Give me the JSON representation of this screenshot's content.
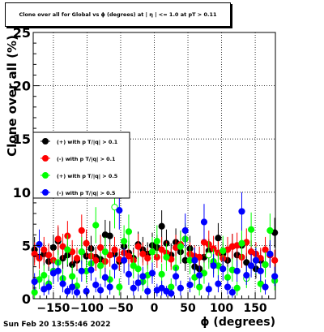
{
  "header": {
    "title": "Clone  over all for Global vs ϕ (degrees) at | η | <= 1.0 at pT > 0.11"
  },
  "timestamp": "Sun Feb 20 13:55:46 2022",
  "chart_data": {
    "type": "scatter",
    "title": "Clone  over all for Global vs ϕ (degrees) at | η | <= 1.0 at pT > 0.11",
    "xlabel": "ϕ (degrees)",
    "ylabel": "Clone  over all (%)",
    "xlim": [
      -180,
      180
    ],
    "ylim": [
      0,
      25
    ],
    "x_ticks": [
      -150,
      -100,
      -50,
      0,
      50,
      100,
      150
    ],
    "x_tick_labels": [
      "−150",
      "−100",
      "−50",
      "0",
      "50",
      "100",
      "150"
    ],
    "y_ticks": [
      0,
      5,
      10,
      15,
      20,
      25
    ],
    "y_tick_labels": [
      "0",
      "5",
      "10",
      "15",
      "20",
      "25"
    ],
    "grid": true,
    "legend_position": "left",
    "x": [
      -178,
      -171,
      -164,
      -157,
      -150,
      -143,
      -136,
      -129,
      -122,
      -115,
      -108,
      -101,
      -94,
      -87,
      -80,
      -73,
      -66,
      -59,
      -52,
      -45,
      -38,
      -31,
      -24,
      -17,
      -10,
      -3,
      4,
      11,
      18,
      25,
      32,
      39,
      46,
      53,
      60,
      67,
      74,
      81,
      88,
      95,
      102,
      109,
      116,
      123,
      130,
      137,
      144,
      151,
      158,
      165,
      172,
      179
    ],
    "series": [
      {
        "name": "(+) with p T/|q| > 0.1",
        "color": "#000000",
        "values": [
          4.6,
          3.9,
          4.2,
          3.5,
          4.8,
          5.4,
          3.8,
          4.1,
          3.2,
          3.6,
          4.4,
          4.0,
          4.7,
          3.9,
          3.7,
          6.0,
          5.9,
          4.2,
          3.5,
          4.9,
          4.3,
          3.8,
          5.1,
          4.6,
          4.2,
          5.0,
          4.8,
          6.8,
          5.2,
          4.1,
          5.3,
          4.4,
          3.6,
          4.7,
          3.0,
          2.8,
          3.9,
          4.5,
          3.3,
          5.7,
          4.2,
          3.6,
          4.9,
          4.1,
          5.0,
          3.4,
          4.4,
          2.8,
          3.6,
          3.2,
          4.1,
          6.2
        ],
        "errors": [
          1.2,
          1.0,
          1.1,
          0.9,
          1.2,
          1.3,
          1.0,
          1.1,
          0.9,
          1.0,
          1.1,
          1.0,
          1.2,
          1.0,
          1.0,
          1.4,
          1.4,
          1.1,
          0.9,
          1.2,
          1.1,
          1.0,
          1.2,
          1.2,
          1.1,
          1.2,
          1.2,
          1.5,
          1.3,
          1.1,
          1.3,
          1.1,
          1.0,
          1.2,
          0.9,
          0.9,
          1.0,
          1.1,
          0.9,
          1.4,
          1.1,
          1.0,
          1.2,
          1.1,
          1.2,
          0.9,
          1.1,
          0.9,
          1.0,
          0.9,
          1.1,
          1.4
        ]
      },
      {
        "name": "(-) with p T/|q| > 0.1",
        "color": "#ff0000",
        "values": [
          4.2,
          3.8,
          4.6,
          4.1,
          3.6,
          5.6,
          4.9,
          5.9,
          4.4,
          3.8,
          6.4,
          5.2,
          4.0,
          3.6,
          4.8,
          3.5,
          4.1,
          4.6,
          3.7,
          4.3,
          4.0,
          3.6,
          4.9,
          4.2,
          3.8,
          4.4,
          3.9,
          4.6,
          4.3,
          3.7,
          4.8,
          5.1,
          5.6,
          4.2,
          4.0,
          3.9,
          5.3,
          5.1,
          4.7,
          4.3,
          3.8,
          4.6,
          4.9,
          5.0,
          3.9,
          5.3,
          4.4,
          4.2,
          3.8,
          4.6,
          4.1,
          3.6
        ],
        "errors": [
          1.1,
          1.0,
          1.2,
          1.1,
          1.0,
          1.3,
          1.2,
          1.4,
          1.1,
          1.0,
          1.5,
          1.3,
          1.0,
          1.0,
          1.2,
          1.0,
          1.1,
          1.2,
          1.0,
          1.1,
          1.0,
          1.0,
          1.2,
          1.1,
          1.0,
          1.1,
          1.0,
          1.2,
          1.1,
          1.0,
          1.2,
          1.3,
          1.3,
          1.1,
          1.0,
          1.0,
          1.3,
          1.3,
          1.2,
          1.1,
          1.0,
          1.2,
          1.2,
          1.2,
          1.0,
          1.3,
          1.1,
          1.1,
          1.0,
          1.2,
          1.1,
          1.0
        ]
      },
      {
        "name": "(+) with p T/|q| > 0.5",
        "color": "#00ff00",
        "values": [
          0.6,
          1.8,
          2.2,
          1.4,
          2.6,
          3.4,
          1.9,
          4.6,
          2.1,
          1.2,
          4.4,
          2.6,
          3.3,
          6.9,
          3.1,
          4.4,
          1.8,
          8.6,
          1.1,
          5.4,
          6.3,
          3.1,
          2.8,
          1.6,
          2.2,
          4.4,
          5.4,
          2.3,
          3.9,
          1.1,
          2.9,
          4.9,
          5.6,
          3.6,
          2.0,
          1.1,
          2.4,
          4.1,
          3.5,
          3.1,
          4.5,
          2.0,
          2.7,
          1.0,
          5.2,
          1.9,
          6.5,
          3.6,
          1.4,
          3.2,
          6.4,
          1.7
        ],
        "errors": [
          0.6,
          0.9,
          1.0,
          0.8,
          1.1,
          1.2,
          0.9,
          1.4,
          1.0,
          0.8,
          1.4,
          1.1,
          1.2,
          1.7,
          1.2,
          1.4,
          0.9,
          2.0,
          0.8,
          1.5,
          1.6,
          1.2,
          1.1,
          0.9,
          1.0,
          1.4,
          1.5,
          1.0,
          1.3,
          0.8,
          1.1,
          1.5,
          1.5,
          1.3,
          1.0,
          0.8,
          1.0,
          1.3,
          1.2,
          1.2,
          1.4,
          1.0,
          1.1,
          0.7,
          1.5,
          0.9,
          1.6,
          1.3,
          0.8,
          1.2,
          1.6,
          0.9
        ],
        "empty_x": [
          -59,
          81,
          137
        ]
      },
      {
        "name": "(-) with p T/|q| > 0.5",
        "color": "#0000ff",
        "values": [
          1.6,
          5.1,
          0.9,
          1.1,
          2.4,
          2.6,
          1.4,
          0.7,
          1.1,
          0.6,
          2.6,
          0.7,
          2.7,
          1.3,
          0.8,
          2.0,
          1.1,
          3.0,
          8.3,
          3.6,
          2.3,
          1.0,
          1.5,
          2.1,
          0.7,
          2.4,
          0.8,
          1.0,
          0.7,
          0.5,
          2.1,
          1.0,
          6.4,
          1.3,
          3.6,
          2.2,
          7.2,
          0.9,
          3.1,
          1.4,
          2.8,
          1.1,
          0.6,
          2.6,
          8.2,
          2.2,
          3.1,
          3.6,
          2.6,
          1.1,
          4.2,
          2.1
        ],
        "errors": [
          0.8,
          1.4,
          0.6,
          0.7,
          1.0,
          1.0,
          0.8,
          0.5,
          0.7,
          0.5,
          1.0,
          0.5,
          1.0,
          0.7,
          0.6,
          0.9,
          0.7,
          1.1,
          1.8,
          1.2,
          1.0,
          0.7,
          0.8,
          0.9,
          0.5,
          1.0,
          0.6,
          0.7,
          0.5,
          0.4,
          0.9,
          0.7,
          1.6,
          0.7,
          1.2,
          0.9,
          1.7,
          0.6,
          1.1,
          0.8,
          1.1,
          0.7,
          0.5,
          1.0,
          1.8,
          0.9,
          1.1,
          1.2,
          1.0,
          0.7,
          1.3,
          0.9
        ]
      }
    ]
  }
}
